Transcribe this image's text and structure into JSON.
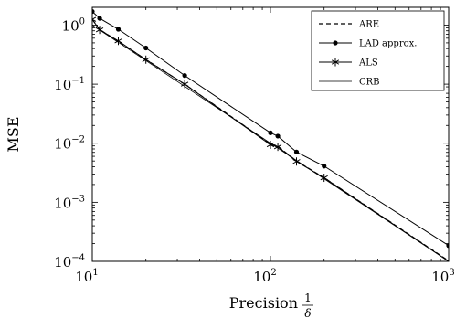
{
  "chart_data": {
    "type": "line",
    "xlabel": "Precision",
    "xlabel_fraction": {
      "numerator": "1",
      "denominator": "δ"
    },
    "ylabel": "MSE",
    "x_scale": "log",
    "y_scale": "log",
    "xlim": [
      10,
      1000
    ],
    "ylim": [
      0.0001,
      2
    ],
    "grid": false,
    "legend_position": "top-right",
    "x_ticks": [
      {
        "value": 10,
        "base": "10",
        "exp": "1"
      },
      {
        "value": 100,
        "base": "10",
        "exp": "2"
      },
      {
        "value": 1000,
        "base": "10",
        "exp": "3"
      }
    ],
    "y_ticks": [
      {
        "value": 0.0001,
        "base": "10",
        "exp": "−4"
      },
      {
        "value": 0.001,
        "base": "10",
        "exp": "−3"
      },
      {
        "value": 0.01,
        "base": "10",
        "exp": "−2"
      },
      {
        "value": 0.1,
        "base": "10",
        "exp": "−1"
      },
      {
        "value": 1,
        "base": "10",
        "exp": "0"
      }
    ],
    "series": [
      {
        "name": "ARE",
        "style": "dashed",
        "marker": "none",
        "color": "#000000",
        "x": [
          10,
          11,
          14,
          20,
          33,
          100,
          110,
          140,
          200,
          1000
        ],
        "y": [
          1.25,
          0.84,
          0.53,
          0.26,
          0.1,
          0.0097,
          0.0089,
          0.005,
          0.0026,
          0.000102
        ]
      },
      {
        "name": "LAD approx.",
        "style": "solid",
        "marker": "dot",
        "color": "#000000",
        "x": [
          10,
          11,
          14,
          20,
          33,
          100,
          110,
          140,
          200,
          1000
        ],
        "y": [
          1.7,
          1.3,
          0.85,
          0.41,
          0.14,
          0.015,
          0.0132,
          0.0071,
          0.0041,
          0.000185
        ]
      },
      {
        "name": "ALS",
        "style": "solid",
        "marker": "star",
        "color": "#000000",
        "x": [
          10,
          11,
          14,
          20,
          33,
          100,
          110,
          140,
          200,
          1000
        ],
        "y": [
          1.25,
          0.83,
          0.54,
          0.26,
          0.1,
          0.0094,
          0.0087,
          0.0049,
          0.0026,
          0.0001
        ]
      },
      {
        "name": "CRB",
        "style": "solid-thin",
        "marker": "none",
        "color": "#000000",
        "x": [
          10,
          1000
        ],
        "y": [
          1.0,
          0.0001
        ]
      }
    ]
  }
}
